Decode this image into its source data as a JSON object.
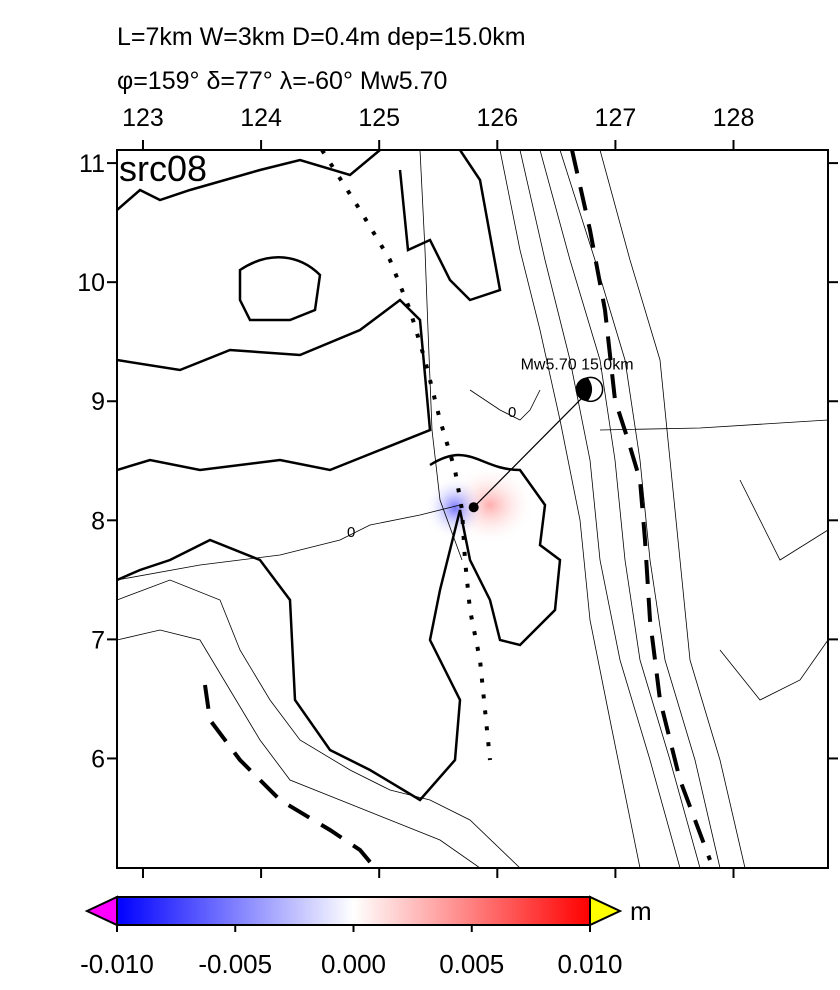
{
  "header": {
    "line1": "L=7km W=3km D=0.4m dep=15.0km",
    "line2": "φ=159° δ=77° λ=-60° Mw5.70"
  },
  "map": {
    "label": "src08",
    "xlim": [
      122.78,
      128.8
    ],
    "ylim": [
      5.08,
      11.11
    ],
    "xticks": [
      123,
      124,
      125,
      126,
      127,
      128
    ],
    "yticks": [
      6,
      7,
      8,
      9,
      10,
      11
    ],
    "annotation": "Mw5.70  15.0km",
    "epicenter": [
      125.8,
      8.11
    ],
    "mechanism": [
      126.79,
      9.1
    ],
    "contour_labels": [
      "0",
      "0"
    ]
  },
  "colorbar": {
    "lim": [
      -0.01,
      0.01
    ],
    "unit": "m",
    "ticks": [
      {
        "value": -0.01,
        "label": "-0.010"
      },
      {
        "value": -0.005,
        "label": "-0.005"
      },
      {
        "value": 0,
        "label": "0.000"
      },
      {
        "value": 0.005,
        "label": "0.005"
      },
      {
        "value": 0.01,
        "label": "0.010"
      }
    ]
  }
}
